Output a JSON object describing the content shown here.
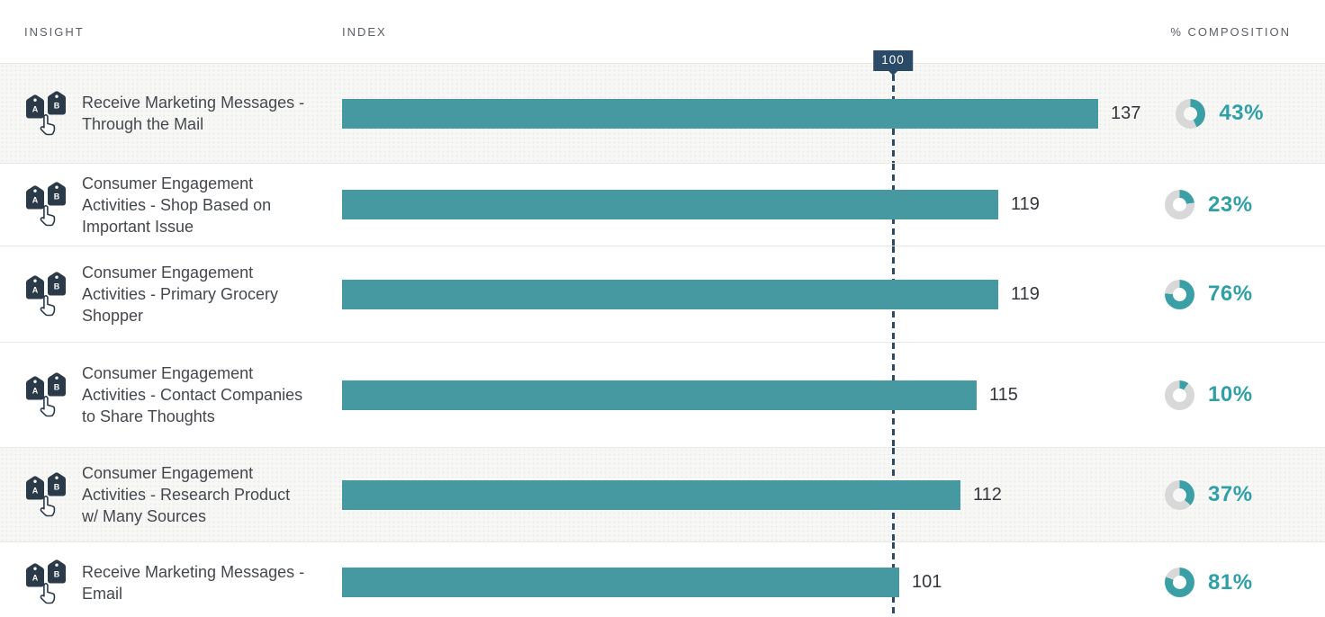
{
  "headers": {
    "insight": "INSIGHT",
    "index": "INDEX",
    "composition": "% COMPOSITION"
  },
  "axis": {
    "marker_label": "100",
    "marker_value": 100
  },
  "colors": {
    "teal_bar": "#4699A0",
    "teal_donut": "#3AA0A6",
    "teal_text": "#2FA0A8",
    "navy": "#2B4A68",
    "donut_track": "#D8D8D8",
    "shaded_row_bg": "#F7F7F6"
  },
  "icons": {
    "row_icon": "ab-tags-pointer-icon"
  },
  "rows": [
    {
      "insight": "Receive Marketing Messages - Through the Mail",
      "index": 137,
      "composition_pct": 43,
      "shaded": true
    },
    {
      "insight": "Consumer Engagement Activities - Shop Based on Important Issue",
      "index": 119,
      "composition_pct": 23,
      "shaded": false
    },
    {
      "insight": "Consumer Engagement Activities - Primary Grocery Shopper",
      "index": 119,
      "composition_pct": 76,
      "shaded": false
    },
    {
      "insight": "Consumer Engagement Activities - Contact Companies to Share Thoughts",
      "index": 115,
      "composition_pct": 10,
      "shaded": false
    },
    {
      "insight": "Consumer Engagement Activities - Research Product w/ Many Sources",
      "index": 112,
      "composition_pct": 37,
      "shaded": true
    },
    {
      "insight": "Receive Marketing Messages - Email",
      "index": 101,
      "composition_pct": 81,
      "shaded": false
    }
  ],
  "chart_data": {
    "type": "bar",
    "orientation": "horizontal",
    "categories": [
      "Receive Marketing Messages - Through the Mail",
      "Consumer Engagement Activities - Shop Based on Important Issue",
      "Consumer Engagement Activities - Primary Grocery Shopper",
      "Consumer Engagement Activities - Contact Companies to Share Thoughts",
      "Consumer Engagement Activities - Research Product w/ Many Sources",
      "Receive Marketing Messages - Email"
    ],
    "series": [
      {
        "name": "Index",
        "values": [
          137,
          119,
          119,
          115,
          112,
          101
        ]
      },
      {
        "name": "% Composition",
        "values": [
          43,
          23,
          76,
          10,
          37,
          81
        ]
      }
    ],
    "title": "",
    "xlabel": "INDEX",
    "ylabel": "INSIGHT",
    "reference_line": 100,
    "xlim": [
      0,
      140
    ],
    "grid": false,
    "legend_position": "none"
  }
}
